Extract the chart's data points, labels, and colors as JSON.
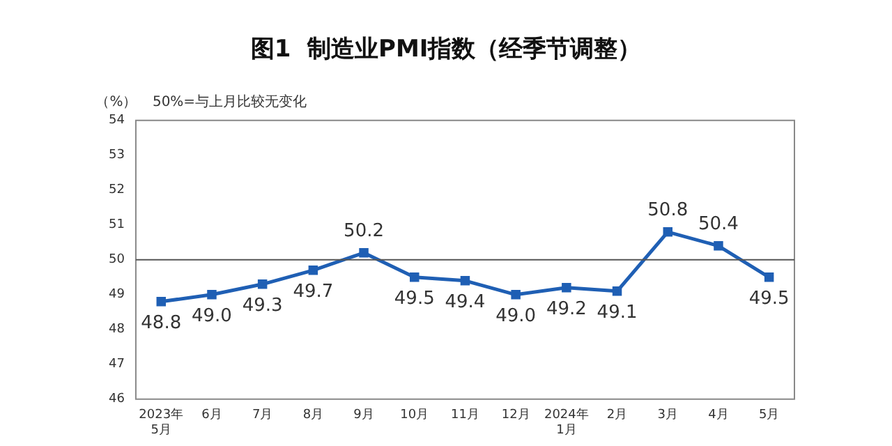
{
  "chart_data": {
    "type": "line",
    "title": "图1  制造业PMI指数（经季节调整）",
    "ylabel": "（%）",
    "annotations": [
      "50%=与上月比较无变化"
    ],
    "categories": [
      "2023年\n5月",
      "6月",
      "7月",
      "8月",
      "9月",
      "10月",
      "11月",
      "12月",
      "2024年\n1月",
      "2月",
      "3月",
      "4月",
      "5月"
    ],
    "series": [
      {
        "color": "#1f5fb4",
        "values": [
          48.8,
          49.0,
          49.3,
          49.7,
          50.2,
          49.5,
          49.4,
          49.0,
          49.2,
          49.1,
          50.8,
          50.4,
          49.5
        ],
        "value_labels": [
          "48.8",
          "49.0",
          "49.3",
          "49.7",
          "50.2",
          "49.5",
          "49.4",
          "49.0",
          "49.2",
          "49.1",
          "50.8",
          "50.4",
          "49.5"
        ]
      }
    ],
    "ylim": [
      46,
      54
    ],
    "yticks": [
      46,
      47,
      48,
      49,
      50,
      51,
      52,
      53,
      54
    ],
    "ref_lines": [
      {
        "axis": "y",
        "value": 50,
        "color": "#555555"
      }
    ],
    "grid": false,
    "legend": false,
    "marker": "square",
    "line_style": "solid"
  }
}
